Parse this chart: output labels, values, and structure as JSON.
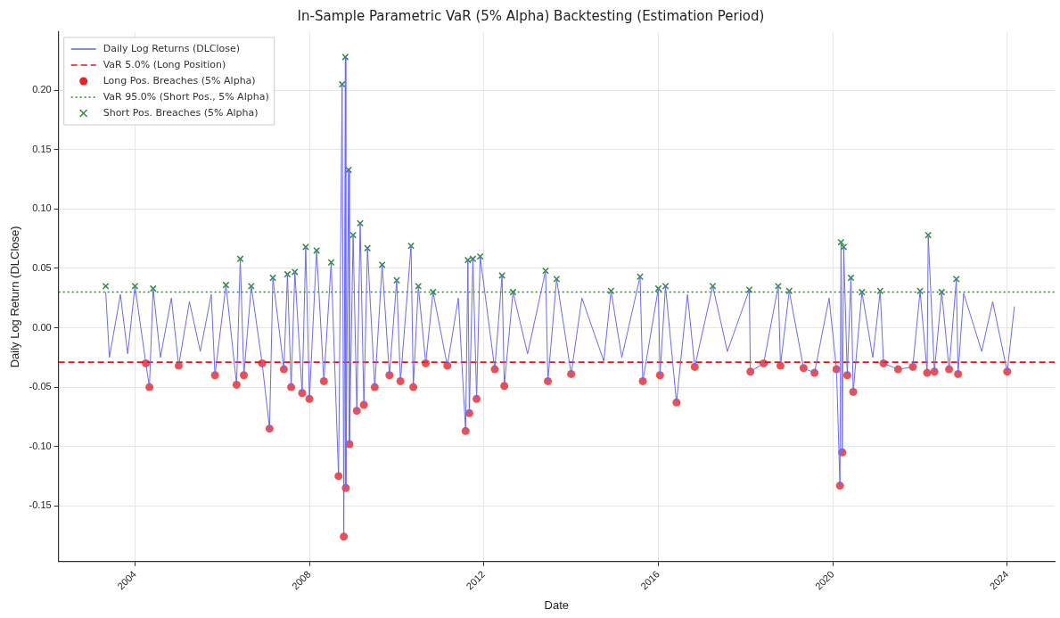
{
  "chart_data": {
    "type": "line",
    "title": "In-Sample Parametric VaR (5% Alpha) Backtesting (Estimation Period)",
    "xlabel": "Date",
    "ylabel": "Daily Log Return (DLClose)",
    "xlim": [
      "2002-04",
      "2025-02"
    ],
    "xticks": [
      "2004",
      "2008",
      "2012",
      "2016",
      "2020",
      "2024"
    ],
    "ylim": [
      -0.197,
      0.249
    ],
    "yticks": [
      {
        "value": -0.15,
        "label": "-0.15"
      },
      {
        "value": -0.1,
        "label": "-0.10"
      },
      {
        "value": -0.05,
        "label": "-0.05"
      },
      {
        "value": 0,
        "label": "0.00"
      },
      {
        "value": 0.05,
        "label": "0.05"
      },
      {
        "value": 0.1,
        "label": "0.10"
      },
      {
        "value": 0.15,
        "label": "0.15"
      },
      {
        "value": 0.2,
        "label": "0.20"
      }
    ],
    "grid": true,
    "legend": "top left",
    "ref_lines": [
      {
        "axis": "y",
        "value": -0.029,
        "label": "VaR 5.0% (Long Position)",
        "color": "#ee1111",
        "line_style": "dashed"
      },
      {
        "axis": "y",
        "value": 0.03,
        "label": "VaR 95.0% (Short Pos., 5% Alpha)",
        "color": "#228b22",
        "line_style": "dotted"
      }
    ],
    "series": [
      {
        "name": "Daily Log Returns (DLClose)",
        "color": "#6b6bf2",
        "marker": "none",
        "x": [
          "2003-05",
          "2003-06",
          "2003-09",
          "2003-11",
          "2004-01",
          "2004-04",
          "2004-05",
          "2004-06",
          "2004-08",
          "2004-11",
          "2005-01",
          "2005-04",
          "2005-07",
          "2005-10",
          "2005-11",
          "2006-02",
          "2006-05",
          "2006-06",
          "2006-07",
          "2006-09",
          "2006-12",
          "2007-02",
          "2007-03",
          "2007-06",
          "2007-07",
          "2007-08",
          "2007-09",
          "2007-11",
          "2007-12",
          "2008-01",
          "2008-03",
          "2008-05",
          "2008-07",
          "2008-09",
          "2008-10",
          "2008-10-15",
          "2008-10-28",
          "2008-11",
          "2008-11-24",
          "2008-12",
          "2009-01",
          "2009-02",
          "2009-03",
          "2009-04",
          "2009-05",
          "2009-07",
          "2009-09",
          "2009-11",
          "2010-01",
          "2010-02",
          "2010-05",
          "2010-05-20",
          "2010-07",
          "2010-09",
          "2010-11",
          "2011-03",
          "2011-06",
          "2011-08",
          "2011-08-20",
          "2011-09",
          "2011-10",
          "2011-11",
          "2011-12",
          "2012-04",
          "2012-06",
          "2012-06-20",
          "2012-09",
          "2013-01",
          "2013-06",
          "2013-06-20",
          "2013-09",
          "2014-01",
          "2014-04",
          "2014-10",
          "2014-12",
          "2015-03",
          "2015-08",
          "2015-08-24",
          "2016-01",
          "2016-01-15",
          "2016-03",
          "2016-06",
          "2016-09",
          "2016-11",
          "2017-04",
          "2017-08",
          "2018-02",
          "2018-02-10",
          "2018-06",
          "2018-10",
          "2018-10-20",
          "2019-01",
          "2019-05",
          "2019-08",
          "2019-12",
          "2020-02",
          "2020-03",
          "2020-03-10",
          "2020-03-20",
          "2020-04",
          "2020-05",
          "2020-06",
          "2020-06-20",
          "2020-09",
          "2020-12",
          "2021-02",
          "2021-03",
          "2021-07",
          "2021-11",
          "2022-01",
          "2022-03",
          "2022-03-10",
          "2022-05",
          "2022-07",
          "2022-09",
          "2022-11",
          "2022-11-15",
          "2023-01",
          "2023-06",
          "2023-09",
          "2024-01",
          "2024-03"
        ],
        "values": [
          0.03,
          -0.025,
          0.028,
          -0.022,
          0.035,
          -0.03,
          -0.05,
          0.033,
          -0.025,
          0.025,
          -0.032,
          0.022,
          -0.02,
          0.028,
          -0.04,
          0.036,
          -0.048,
          0.058,
          -0.04,
          0.035,
          -0.03,
          -0.085,
          0.042,
          -0.035,
          0.045,
          -0.05,
          0.047,
          -0.055,
          0.068,
          -0.06,
          0.065,
          -0.045,
          0.055,
          -0.125,
          0.205,
          -0.176,
          0.228,
          -0.135,
          0.133,
          -0.098,
          0.078,
          -0.07,
          0.088,
          -0.065,
          0.067,
          -0.05,
          0.053,
          -0.04,
          0.04,
          -0.045,
          0.069,
          -0.05,
          0.035,
          -0.03,
          0.03,
          -0.032,
          0.025,
          -0.087,
          0.057,
          -0.072,
          0.058,
          -0.06,
          0.06,
          -0.035,
          0.044,
          -0.049,
          0.03,
          -0.022,
          0.048,
          -0.045,
          0.041,
          -0.039,
          0.025,
          -0.028,
          0.031,
          -0.025,
          0.043,
          -0.045,
          0.033,
          -0.04,
          0.035,
          -0.063,
          0.028,
          -0.033,
          0.035,
          -0.02,
          0.032,
          -0.037,
          -0.03,
          0.035,
          -0.032,
          0.031,
          -0.034,
          -0.038,
          0.025,
          -0.035,
          -0.133,
          0.072,
          -0.105,
          0.068,
          -0.04,
          0.042,
          -0.054,
          0.03,
          -0.025,
          0.031,
          -0.03,
          -0.035,
          -0.033,
          0.031,
          -0.038,
          0.078,
          -0.037,
          0.03,
          -0.035,
          0.041,
          -0.039,
          0.029,
          -0.02,
          0.022,
          -0.037,
          0.018
        ]
      },
      {
        "name": "Long Pos. Breaches (5% Alpha)",
        "type": "scatter",
        "color": "#ee2222",
        "marker": "circle",
        "x": [
          "2004-04",
          "2004-05",
          "2005-01",
          "2005-11",
          "2006-05",
          "2006-07",
          "2006-12",
          "2007-02",
          "2007-06",
          "2007-08",
          "2007-11",
          "2008-01",
          "2008-05",
          "2008-09",
          "2008-10-15",
          "2008-11",
          "2008-12",
          "2009-02",
          "2009-04",
          "2009-07",
          "2009-11",
          "2010-02",
          "2010-05-20",
          "2010-09",
          "2011-03",
          "2011-08",
          "2011-09",
          "2011-11",
          "2012-04",
          "2012-06-20",
          "2013-06-20",
          "2014-01",
          "2015-08-24",
          "2016-01-15",
          "2016-06",
          "2016-11",
          "2018-02-10",
          "2018-06",
          "2018-10-20",
          "2019-05",
          "2019-08",
          "2020-02",
          "2020-03",
          "2020-03-20",
          "2020-05",
          "2020-06-20",
          "2021-03",
          "2021-07",
          "2021-11",
          "2022-03",
          "2022-05",
          "2022-09",
          "2022-11-15",
          "2024-01"
        ],
        "values": [
          -0.03,
          -0.05,
          -0.032,
          -0.04,
          -0.048,
          -0.04,
          -0.03,
          -0.085,
          -0.035,
          -0.05,
          -0.055,
          -0.06,
          -0.045,
          -0.125,
          -0.176,
          -0.135,
          -0.098,
          -0.07,
          -0.065,
          -0.05,
          -0.04,
          -0.045,
          -0.05,
          -0.03,
          -0.032,
          -0.087,
          -0.072,
          -0.06,
          -0.035,
          -0.049,
          -0.045,
          -0.039,
          -0.045,
          -0.04,
          -0.063,
          -0.033,
          -0.037,
          -0.03,
          -0.032,
          -0.034,
          -0.038,
          -0.035,
          -0.133,
          -0.105,
          -0.04,
          -0.054,
          -0.03,
          -0.035,
          -0.033,
          -0.038,
          -0.037,
          -0.035,
          -0.039,
          -0.037
        ]
      },
      {
        "name": "Short Pos. Breaches (5% Alpha)",
        "type": "scatter",
        "color": "#2e8b3e",
        "marker": "cross",
        "x": [
          "2003-05",
          "2004-01",
          "2004-06",
          "2006-02",
          "2006-06",
          "2006-09",
          "2007-03",
          "2007-07",
          "2007-09",
          "2007-12",
          "2008-03",
          "2008-07",
          "2008-10",
          "2008-10-28",
          "2008-11-24",
          "2009-01",
          "2009-03",
          "2009-05",
          "2009-09",
          "2010-01",
          "2010-05",
          "2010-07",
          "2010-11",
          "2011-08-20",
          "2011-10",
          "2011-12",
          "2012-06",
          "2012-09",
          "2013-06",
          "2013-09",
          "2014-12",
          "2015-08",
          "2016-01",
          "2016-03",
          "2017-04",
          "2018-02",
          "2018-10",
          "2019-01",
          "2020-03-10",
          "2020-04",
          "2020-06",
          "2020-09",
          "2021-02",
          "2022-01",
          "2022-03-10",
          "2022-07",
          "2022-11"
        ],
        "values": [
          0.035,
          0.035,
          0.033,
          0.036,
          0.058,
          0.035,
          0.042,
          0.045,
          0.047,
          0.068,
          0.065,
          0.055,
          0.205,
          0.228,
          0.133,
          0.078,
          0.088,
          0.067,
          0.053,
          0.04,
          0.069,
          0.035,
          0.03,
          0.057,
          0.058,
          0.06,
          0.044,
          0.03,
          0.048,
          0.041,
          0.031,
          0.043,
          0.033,
          0.035,
          0.035,
          0.032,
          0.035,
          0.031,
          0.072,
          0.068,
          0.042,
          0.03,
          0.031,
          0.031,
          0.078,
          0.03,
          0.041
        ]
      }
    ]
  }
}
